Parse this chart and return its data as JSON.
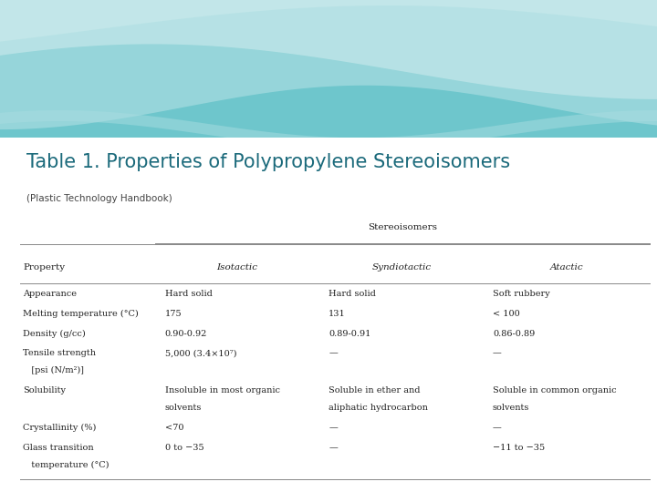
{
  "title": "Table 1. Properties of Polypropylene Stereoisomers",
  "subtitle": "(Plastic Technology Handbook)",
  "title_color": "#1B6A7B",
  "subtitle_color": "#444444",
  "group_header": "Stereoisomers",
  "columns": [
    "Property",
    "Isotactic",
    "Syndiotactic",
    "Atactic"
  ],
  "rows": [
    [
      "Appearance",
      "Hard solid",
      "Hard solid",
      "Soft rubbery"
    ],
    [
      "Melting temperature (°C)",
      "175",
      "131",
      "< 100"
    ],
    [
      "Density (g/cc)",
      "0.90-0.92",
      "0.89-0.91",
      "0.86-0.89"
    ],
    [
      "Tensile strength\n   [psi (N/m²)]",
      "5,000 (3.4×10⁷)",
      "—",
      "—"
    ],
    [
      "Solubility",
      "Insoluble in most organic\nsolvents",
      "Soluble in ether and\naliphatic hydrocarbon",
      "Soluble in common organic\nsolvents"
    ],
    [
      "Crystallinity (%)",
      "<70",
      "—",
      "—"
    ],
    [
      "Glass transition\n   temperature (°C)",
      "0 to −35",
      "—",
      "−11 to −35"
    ]
  ],
  "bg_color": "#FFFFFF",
  "table_text_color": "#222222",
  "line_color": "#888888",
  "font_size_title": 15,
  "font_size_subtitle": 7.5,
  "font_size_table": 7,
  "wave_teal": "#6EC6CC",
  "wave_light": "#A8DCE0",
  "wave_white": "#FFFFFF"
}
